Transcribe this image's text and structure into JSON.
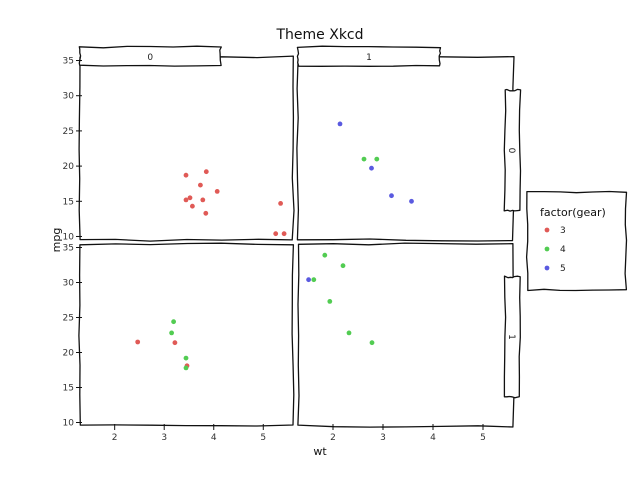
{
  "colors": {
    "3": "#e05a56",
    "4": "#52cc52",
    "5": "#5a5ae0"
  },
  "chart_data": {
    "type": "scatter",
    "title": "Theme Xkcd",
    "xlabel": "wt",
    "ylabel": "mpg",
    "xlim": [
      1.3,
      5.6
    ],
    "ylim": [
      9.5,
      35.5
    ],
    "x_ticks": [
      2,
      3,
      4,
      5
    ],
    "y_ticks": [
      10,
      15,
      20,
      25,
      30,
      35
    ],
    "col_facets": [
      "0",
      "1"
    ],
    "row_facets": [
      "0",
      "1"
    ],
    "legend": {
      "title": "factor(gear)",
      "position": "right",
      "entries": [
        "3",
        "4",
        "5"
      ]
    },
    "panels": [
      {
        "row": "0",
        "col": "0",
        "points": [
          {
            "x": 3.44,
            "y": 18.7,
            "gear": "3"
          },
          {
            "x": 3.57,
            "y": 14.3,
            "gear": "3"
          },
          {
            "x": 4.07,
            "y": 16.4,
            "gear": "3"
          },
          {
            "x": 3.73,
            "y": 17.3,
            "gear": "3"
          },
          {
            "x": 3.78,
            "y": 15.2,
            "gear": "3"
          },
          {
            "x": 5.25,
            "y": 10.4,
            "gear": "3"
          },
          {
            "x": 5.42,
            "y": 10.4,
            "gear": "3"
          },
          {
            "x": 5.35,
            "y": 14.7,
            "gear": "3"
          },
          {
            "x": 3.52,
            "y": 15.5,
            "gear": "3"
          },
          {
            "x": 3.44,
            "y": 15.2,
            "gear": "3"
          },
          {
            "x": 3.84,
            "y": 13.3,
            "gear": "3"
          },
          {
            "x": 3.85,
            "y": 19.2,
            "gear": "3"
          }
        ]
      },
      {
        "row": "0",
        "col": "1",
        "points": [
          {
            "x": 2.62,
            "y": 21.0,
            "gear": "4"
          },
          {
            "x": 2.875,
            "y": 21.0,
            "gear": "4"
          },
          {
            "x": 2.14,
            "y": 26.0,
            "gear": "5"
          },
          {
            "x": 3.17,
            "y": 15.8,
            "gear": "5"
          },
          {
            "x": 2.77,
            "y": 19.7,
            "gear": "5"
          },
          {
            "x": 3.57,
            "y": 15.0,
            "gear": "5"
          }
        ]
      },
      {
        "row": "1",
        "col": "0",
        "points": [
          {
            "x": 2.465,
            "y": 21.5,
            "gear": "3"
          },
          {
            "x": 3.215,
            "y": 21.4,
            "gear": "3"
          },
          {
            "x": 3.46,
            "y": 18.1,
            "gear": "3"
          },
          {
            "x": 3.19,
            "y": 24.4,
            "gear": "4"
          },
          {
            "x": 3.15,
            "y": 22.8,
            "gear": "4"
          },
          {
            "x": 3.44,
            "y": 19.2,
            "gear": "4"
          },
          {
            "x": 3.44,
            "y": 17.8,
            "gear": "4"
          }
        ]
      },
      {
        "row": "1",
        "col": "1",
        "points": [
          {
            "x": 2.32,
            "y": 22.8,
            "gear": "4"
          },
          {
            "x": 2.2,
            "y": 32.4,
            "gear": "4"
          },
          {
            "x": 1.615,
            "y": 30.4,
            "gear": "4"
          },
          {
            "x": 1.835,
            "y": 33.9,
            "gear": "4"
          },
          {
            "x": 1.935,
            "y": 27.3,
            "gear": "4"
          },
          {
            "x": 2.78,
            "y": 21.4,
            "gear": "4"
          },
          {
            "x": 1.513,
            "y": 30.4,
            "gear": "5"
          }
        ]
      }
    ]
  }
}
